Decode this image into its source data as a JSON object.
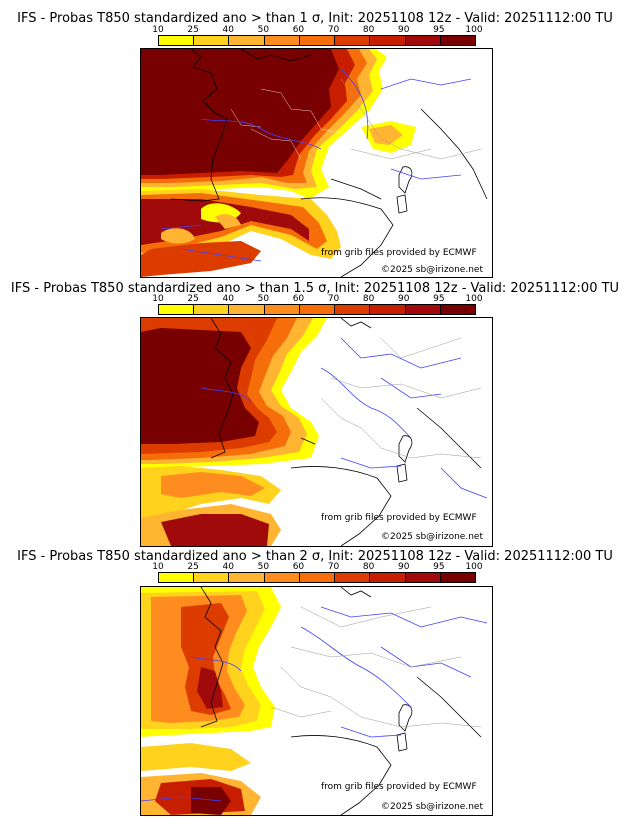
{
  "colorbar": {
    "ticks": [
      "10",
      "25",
      "40",
      "50",
      "60",
      "70",
      "80",
      "90",
      "95",
      "100"
    ],
    "colors": [
      "#ffff00",
      "#ffd21e",
      "#ffb432",
      "#ff8c1e",
      "#f56e0a",
      "#dc3c00",
      "#c81e00",
      "#a00a0a",
      "#780000"
    ]
  },
  "credits": {
    "source": "from grib files provided by ECMWF",
    "copyright": "©2025 sb@irizone.net"
  },
  "panels": [
    {
      "title": "IFS - Probas T850  standardized ano > than 1 σ, Init: 20251108 12z - Valid: 20251112:00 TU",
      "threshold": "1 σ"
    },
    {
      "title": "IFS - Probas T850  standardized ano > than 1.5 σ, Init: 20251108 12z - Valid: 20251112:00 TU",
      "threshold": "1.5 σ"
    },
    {
      "title": "IFS - Probas T850  standardized ano > than 2 σ, Init: 20251108 12z - Valid: 20251112:00 TU",
      "threshold": "2 σ"
    }
  ]
}
